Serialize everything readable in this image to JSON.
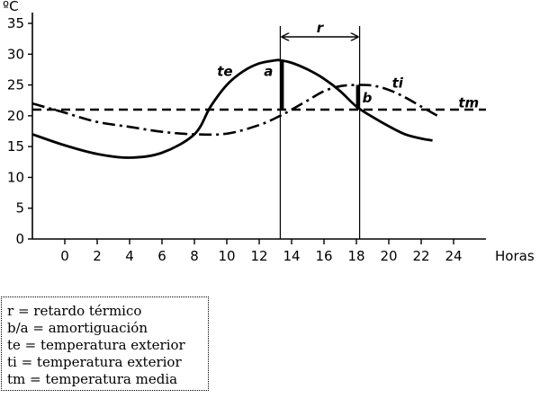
{
  "chart_data": {
    "type": "line",
    "ylabel": "ºC",
    "xlabel": "Horas",
    "ylim": [
      0,
      35
    ],
    "yticks": [
      0,
      5,
      10,
      15,
      20,
      25,
      30,
      35
    ],
    "xlim": [
      -2,
      26
    ],
    "xticks": [
      0,
      2,
      4,
      6,
      8,
      10,
      12,
      14,
      16,
      18,
      20,
      22,
      24
    ],
    "grid": false,
    "series": [
      {
        "name": "te",
        "style": "solid",
        "x": [
          -2,
          0,
          2,
          4,
          6,
          8,
          9,
          10,
          11,
          12,
          13,
          13.3,
          14,
          15,
          16,
          17,
          18,
          19,
          20,
          21,
          22,
          22.7
        ],
        "y": [
          17,
          15.2,
          13.8,
          13.2,
          14,
          17,
          21.5,
          25,
          27.2,
          28.5,
          29,
          29,
          28.6,
          27.5,
          26,
          24,
          21.5,
          19.8,
          18.3,
          17,
          16.3,
          16
        ]
      },
      {
        "name": "ti",
        "style": "dash-dot",
        "x": [
          -2,
          0,
          2,
          4,
          6,
          8,
          10,
          12,
          13.3,
          14,
          15,
          16,
          17,
          18,
          19,
          20,
          21,
          22,
          23
        ],
        "y": [
          22,
          20.5,
          19,
          18.2,
          17.4,
          17,
          17.1,
          18.5,
          20,
          21,
          22.5,
          24,
          24.8,
          25,
          24.9,
          24.2,
          23,
          21.5,
          20
        ]
      },
      {
        "name": "tm",
        "style": "dashed",
        "x": [
          -2,
          26
        ],
        "y": [
          21,
          21
        ]
      }
    ],
    "annotations": [
      {
        "label": "r",
        "type": "bracket-arrow",
        "x_from": 13.3,
        "x_to": 18.2
      },
      {
        "label": "a",
        "type": "bar",
        "x": 13.3,
        "y_from": 21,
        "y_to": 29
      },
      {
        "label": "b",
        "type": "bar",
        "x": 18.2,
        "y_from": 21,
        "y_to": 25
      }
    ]
  },
  "legend": {
    "items": [
      "r = retardo térmico",
      "b/a = amortiguación",
      "te = temperatura exterior",
      "ti = temperatura exterior",
      "tm = temperatura media"
    ]
  }
}
